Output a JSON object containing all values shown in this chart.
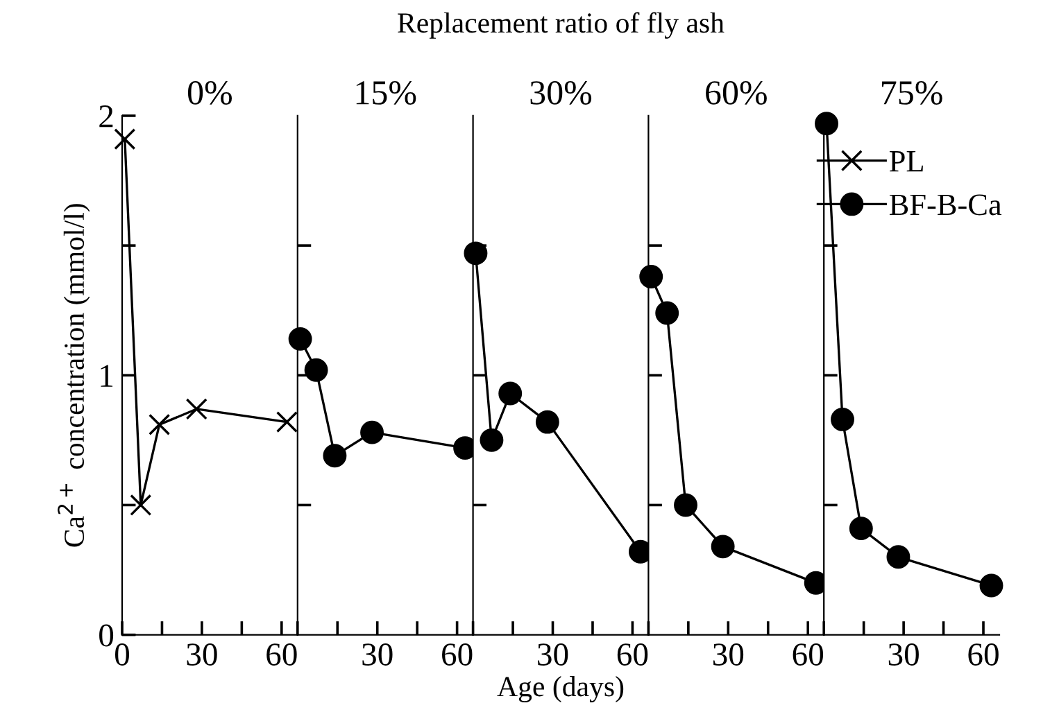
{
  "chart_data": [
    {
      "type": "line",
      "title": "0%",
      "ylabel": "Ca$^{2+}$ concentration (mmol/l)",
      "xlim": [
        0,
        66
      ],
      "xticks": [
        0,
        30,
        60
      ],
      "ylim": [
        0,
        2
      ],
      "yticks": [
        0,
        {
          "value": 0.5,
          "label": null
        },
        1,
        {
          "value": 1.5,
          "label": null
        },
        2
      ],
      "marker": "cross",
      "grid": false,
      "series": [
        {
          "name": "PL",
          "color": "#000000",
          "x": [
            1,
            7,
            14,
            28,
            62
          ],
          "values": [
            1.91,
            0.5,
            0.81,
            0.87,
            0.82
          ]
        }
      ]
    },
    {
      "type": "line",
      "title": "15%",
      "xlim": [
        0,
        66
      ],
      "xticks": [
        30,
        60
      ],
      "ylim": [
        0,
        2
      ],
      "yticks": [
        {
          "value": 0.5,
          "label": null
        },
        {
          "value": 1,
          "label": null
        },
        {
          "value": 1.5,
          "label": null
        }
      ],
      "tick_labels": "x",
      "marker": "circle",
      "grid": false,
      "series": [
        {
          "name": "BF-B-Ca",
          "color": "#000000",
          "x": [
            1,
            7,
            14,
            28,
            63
          ],
          "values": [
            1.14,
            1.02,
            0.69,
            0.78,
            0.72
          ]
        }
      ]
    },
    {
      "type": "line",
      "title": "30%",
      "xlabel": "Age (days)",
      "annotations": [
        "Replacement ratio of fly ash"
      ],
      "xlim": [
        0,
        66
      ],
      "xticks": [
        30,
        60
      ],
      "ylim": [
        0,
        2
      ],
      "yticks": [
        {
          "value": 0.5,
          "label": null
        },
        {
          "value": 1,
          "label": null
        },
        {
          "value": 1.5,
          "label": null
        }
      ],
      "tick_labels": "x",
      "marker": "circle",
      "grid": false,
      "series": [
        {
          "name": "BF-B-Ca",
          "color": "#000000",
          "x": [
            1,
            7,
            14,
            28,
            63
          ],
          "values": [
            1.47,
            0.75,
            0.93,
            0.82,
            0.32
          ]
        }
      ]
    },
    {
      "type": "line",
      "title": "60%",
      "xlim": [
        0,
        66
      ],
      "xticks": [
        30,
        60
      ],
      "ylim": [
        0,
        2
      ],
      "yticks": [
        {
          "value": 0.5,
          "label": null
        },
        {
          "value": 1,
          "label": null
        },
        {
          "value": 1.5,
          "label": null
        }
      ],
      "tick_labels": "x",
      "marker": "circle",
      "grid": false,
      "series": [
        {
          "name": "BF-B-Ca",
          "color": "#000000",
          "x": [
            1,
            7,
            14,
            28,
            63
          ],
          "values": [
            1.38,
            1.24,
            0.5,
            0.34,
            0.2
          ]
        }
      ]
    },
    {
      "type": "line",
      "title": "75%",
      "xlim": [
        0,
        66
      ],
      "xticks": [
        30,
        60
      ],
      "ylim": [
        0,
        2
      ],
      "yticks": [
        {
          "value": 0.5,
          "label": null
        },
        {
          "value": 1,
          "label": null
        },
        {
          "value": 1.5,
          "label": null
        }
      ],
      "tick_labels": "x",
      "marker": "circle",
      "grid": false,
      "legend": "top right",
      "series": [
        {
          "name": "BF-B-Ca",
          "color": "#000000",
          "x": [
            1,
            7,
            14,
            28,
            63
          ],
          "values": [
            1.97,
            0.83,
            0.41,
            0.3,
            0.19
          ]
        }
      ]
    }
  ]
}
